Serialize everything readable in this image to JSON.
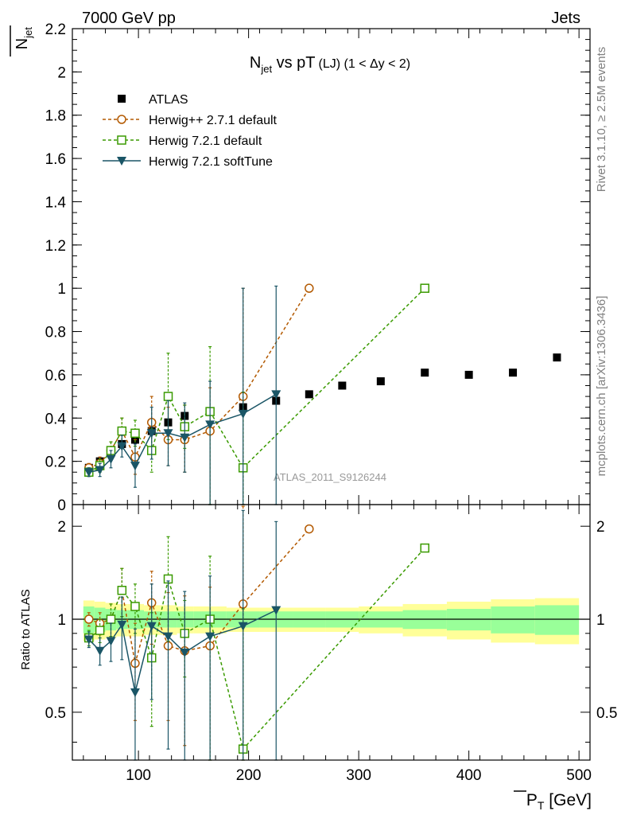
{
  "header": {
    "left": "7000 GeV pp",
    "right": "Jets"
  },
  "side_labels": {
    "rivet": "Rivet 3.1.10, ≥ 2.5M events",
    "mcplots": "mcplots.cern.ch [arXiv:1306.3436]"
  },
  "watermark": "ATLAS_2011_S9126244",
  "colors": {
    "atlas": "#000000",
    "herwigpp": "#b35900",
    "herwig_default": "#3a9a00",
    "herwig_soft": "#1a5566",
    "band_inner": "#99ff99",
    "band_outer": "#ffff99"
  },
  "chart_data": [
    {
      "type": "scatter",
      "title": "N_jet vs pT (LJ) (1 < Δy < 2)",
      "title_parts": {
        "main": "N",
        "sub": "jet",
        "mid": " vs pT",
        "tail": "(LJ) (1 < Δy < 2)"
      },
      "ylabel": "N_jet (overlined)",
      "ylabel_parts": {
        "main": "N",
        "sub": "jet"
      },
      "xlim": [
        40,
        510
      ],
      "ylim": [
        0,
        2.2
      ],
      "yticks": [
        0,
        0.2,
        0.4,
        0.6,
        0.8,
        1,
        1.2,
        1.4,
        1.6,
        1.8,
        2,
        2.2
      ],
      "ytick_labels": [
        "0",
        "0.2",
        "0.4",
        "0.6",
        "0.8",
        "1",
        "1.2",
        "1.4",
        "1.6",
        "1.8",
        "2",
        "2.2"
      ],
      "legend": [
        "ATLAS",
        "Herwig++ 2.7.1 default",
        "Herwig 7.2.1 default",
        "Herwig 7.2.1 softTune"
      ],
      "legend_position": "top-left",
      "series": [
        {
          "name": "ATLAS",
          "marker": "filled-square",
          "x": [
            55,
            65,
            75,
            85,
            97,
            112,
            127,
            142,
            165,
            195,
            225,
            255,
            285,
            320,
            360,
            400,
            440,
            480
          ],
          "values": [
            0.17,
            0.2,
            0.25,
            0.28,
            0.3,
            0.34,
            0.38,
            0.41,
            0.43,
            0.45,
            0.48,
            0.51,
            0.55,
            0.57,
            0.61,
            0.6,
            0.61,
            0.68
          ]
        },
        {
          "name": "Herwig++ 2.7.1 default",
          "marker": "open-circle",
          "x": [
            55,
            65,
            75,
            85,
            97,
            112,
            127,
            142,
            165,
            195,
            255
          ],
          "values": [
            0.17,
            0.19,
            0.25,
            0.34,
            0.22,
            0.38,
            0.3,
            0.3,
            0.34,
            0.5,
            1.0
          ],
          "err_up": [
            0.02,
            0.03,
            0.04,
            0.06,
            0.08,
            0.12,
            0.15,
            0.16,
            0.2,
            0.5,
            0.0
          ],
          "err_down": [
            0.02,
            0.03,
            0.04,
            0.06,
            0.08,
            0.12,
            0.12,
            0.15,
            0.34,
            0.5,
            0.0
          ]
        },
        {
          "name": "Herwig 7.2.1 default",
          "marker": "open-square",
          "x": [
            55,
            65,
            75,
            85,
            97,
            112,
            127,
            142,
            165,
            195,
            360
          ],
          "values": [
            0.15,
            0.18,
            0.25,
            0.34,
            0.33,
            0.25,
            0.5,
            0.36,
            0.43,
            0.17,
            1.0
          ],
          "err_up": [
            0.02,
            0.03,
            0.04,
            0.06,
            0.06,
            0.1,
            0.2,
            0.1,
            0.3,
            0.35,
            0.0
          ],
          "err_down": [
            0.02,
            0.03,
            0.04,
            0.06,
            0.06,
            0.1,
            0.2,
            0.1,
            0.43,
            0.17,
            0.0
          ]
        },
        {
          "name": "Herwig 7.2.1 softTune",
          "marker": "filled-triangle-down",
          "x": [
            55,
            65,
            75,
            85,
            97,
            112,
            127,
            142,
            165,
            195,
            225
          ],
          "values": [
            0.15,
            0.16,
            0.21,
            0.27,
            0.18,
            0.33,
            0.33,
            0.31,
            0.37,
            0.42,
            0.51
          ],
          "err_up": [
            0.02,
            0.03,
            0.04,
            0.05,
            0.1,
            0.12,
            0.15,
            0.16,
            0.2,
            0.58,
            0.5
          ],
          "err_down": [
            0.02,
            0.03,
            0.04,
            0.05,
            0.1,
            0.12,
            0.15,
            0.16,
            0.37,
            0.42,
            0.51
          ]
        }
      ]
    },
    {
      "type": "scatter",
      "title": "",
      "xlabel": "P_T [GeV] (overlined P)",
      "xlabel_parts": {
        "main": "P",
        "sub": "T",
        "unit": " [GeV]"
      },
      "ylabel": "Ratio to ATLAS",
      "xlim": [
        40,
        510
      ],
      "ylim": [
        0.35,
        2.35
      ],
      "xticks": [
        100,
        200,
        300,
        400,
        500
      ],
      "xtick_labels": [
        "100",
        "200",
        "300",
        "400",
        "500"
      ],
      "yticks": [
        0.5,
        1,
        2
      ],
      "ytick_labels": [
        "0.5",
        "1",
        "2"
      ],
      "bands": {
        "x_edges": [
          50,
          60,
          70,
          80,
          90,
          105,
          120,
          135,
          150,
          180,
          210,
          240,
          270,
          300,
          340,
          380,
          420,
          460,
          500
        ],
        "inner_halfwidth": [
          0.1,
          0.09,
          0.08,
          0.07,
          0.07,
          0.06,
          0.06,
          0.06,
          0.06,
          0.06,
          0.06,
          0.06,
          0.06,
          0.06,
          0.07,
          0.08,
          0.1,
          0.11
        ],
        "outer_halfwidth": [
          0.15,
          0.14,
          0.13,
          0.12,
          0.12,
          0.11,
          0.11,
          0.1,
          0.1,
          0.09,
          0.09,
          0.09,
          0.09,
          0.1,
          0.12,
          0.14,
          0.16,
          0.17
        ]
      },
      "series": [
        {
          "name": "Herwig++ 2.7.1 default",
          "marker": "open-circle",
          "x": [
            55,
            65,
            75,
            85,
            97,
            112,
            127,
            142,
            165,
            195,
            255
          ],
          "values": [
            1.0,
            0.97,
            1.0,
            1.24,
            0.72,
            1.13,
            0.82,
            0.79,
            0.82,
            1.12,
            1.96
          ],
          "err_up": [
            0.05,
            0.08,
            0.12,
            0.22,
            0.25,
            0.3,
            0.4,
            0.4,
            0.45,
            1.2,
            0.0
          ],
          "err_down": [
            0.05,
            0.08,
            0.12,
            0.22,
            0.25,
            0.3,
            0.35,
            0.4,
            0.5,
            0.8,
            0.0
          ]
        },
        {
          "name": "Herwig 7.2.1 default",
          "marker": "open-square",
          "x": [
            55,
            65,
            75,
            85,
            97,
            112,
            127,
            142,
            165,
            195,
            360
          ],
          "values": [
            0.87,
            0.92,
            1.0,
            1.24,
            1.1,
            0.75,
            1.35,
            0.9,
            1.0,
            0.38,
            1.7
          ],
          "err_up": [
            0.05,
            0.08,
            0.12,
            0.22,
            0.2,
            0.3,
            0.5,
            0.25,
            0.6,
            0.7,
            0.0
          ],
          "err_down": [
            0.05,
            0.08,
            0.12,
            0.22,
            0.2,
            0.3,
            0.5,
            0.25,
            0.7,
            0.05,
            0.0
          ]
        },
        {
          "name": "Herwig 7.2.1 softTune",
          "marker": "filled-triangle-down",
          "x": [
            55,
            65,
            75,
            85,
            97,
            112,
            127,
            142,
            165,
            195,
            225
          ],
          "values": [
            0.86,
            0.79,
            0.85,
            0.96,
            0.58,
            0.95,
            0.88,
            0.78,
            0.88,
            0.95,
            1.07
          ],
          "err_up": [
            0.05,
            0.08,
            0.12,
            0.22,
            0.35,
            0.35,
            0.45,
            0.45,
            0.5,
            1.3,
            1.0
          ],
          "err_down": [
            0.05,
            0.08,
            0.12,
            0.22,
            0.25,
            0.4,
            0.5,
            0.45,
            0.6,
            0.8,
            0.75
          ]
        }
      ]
    }
  ]
}
